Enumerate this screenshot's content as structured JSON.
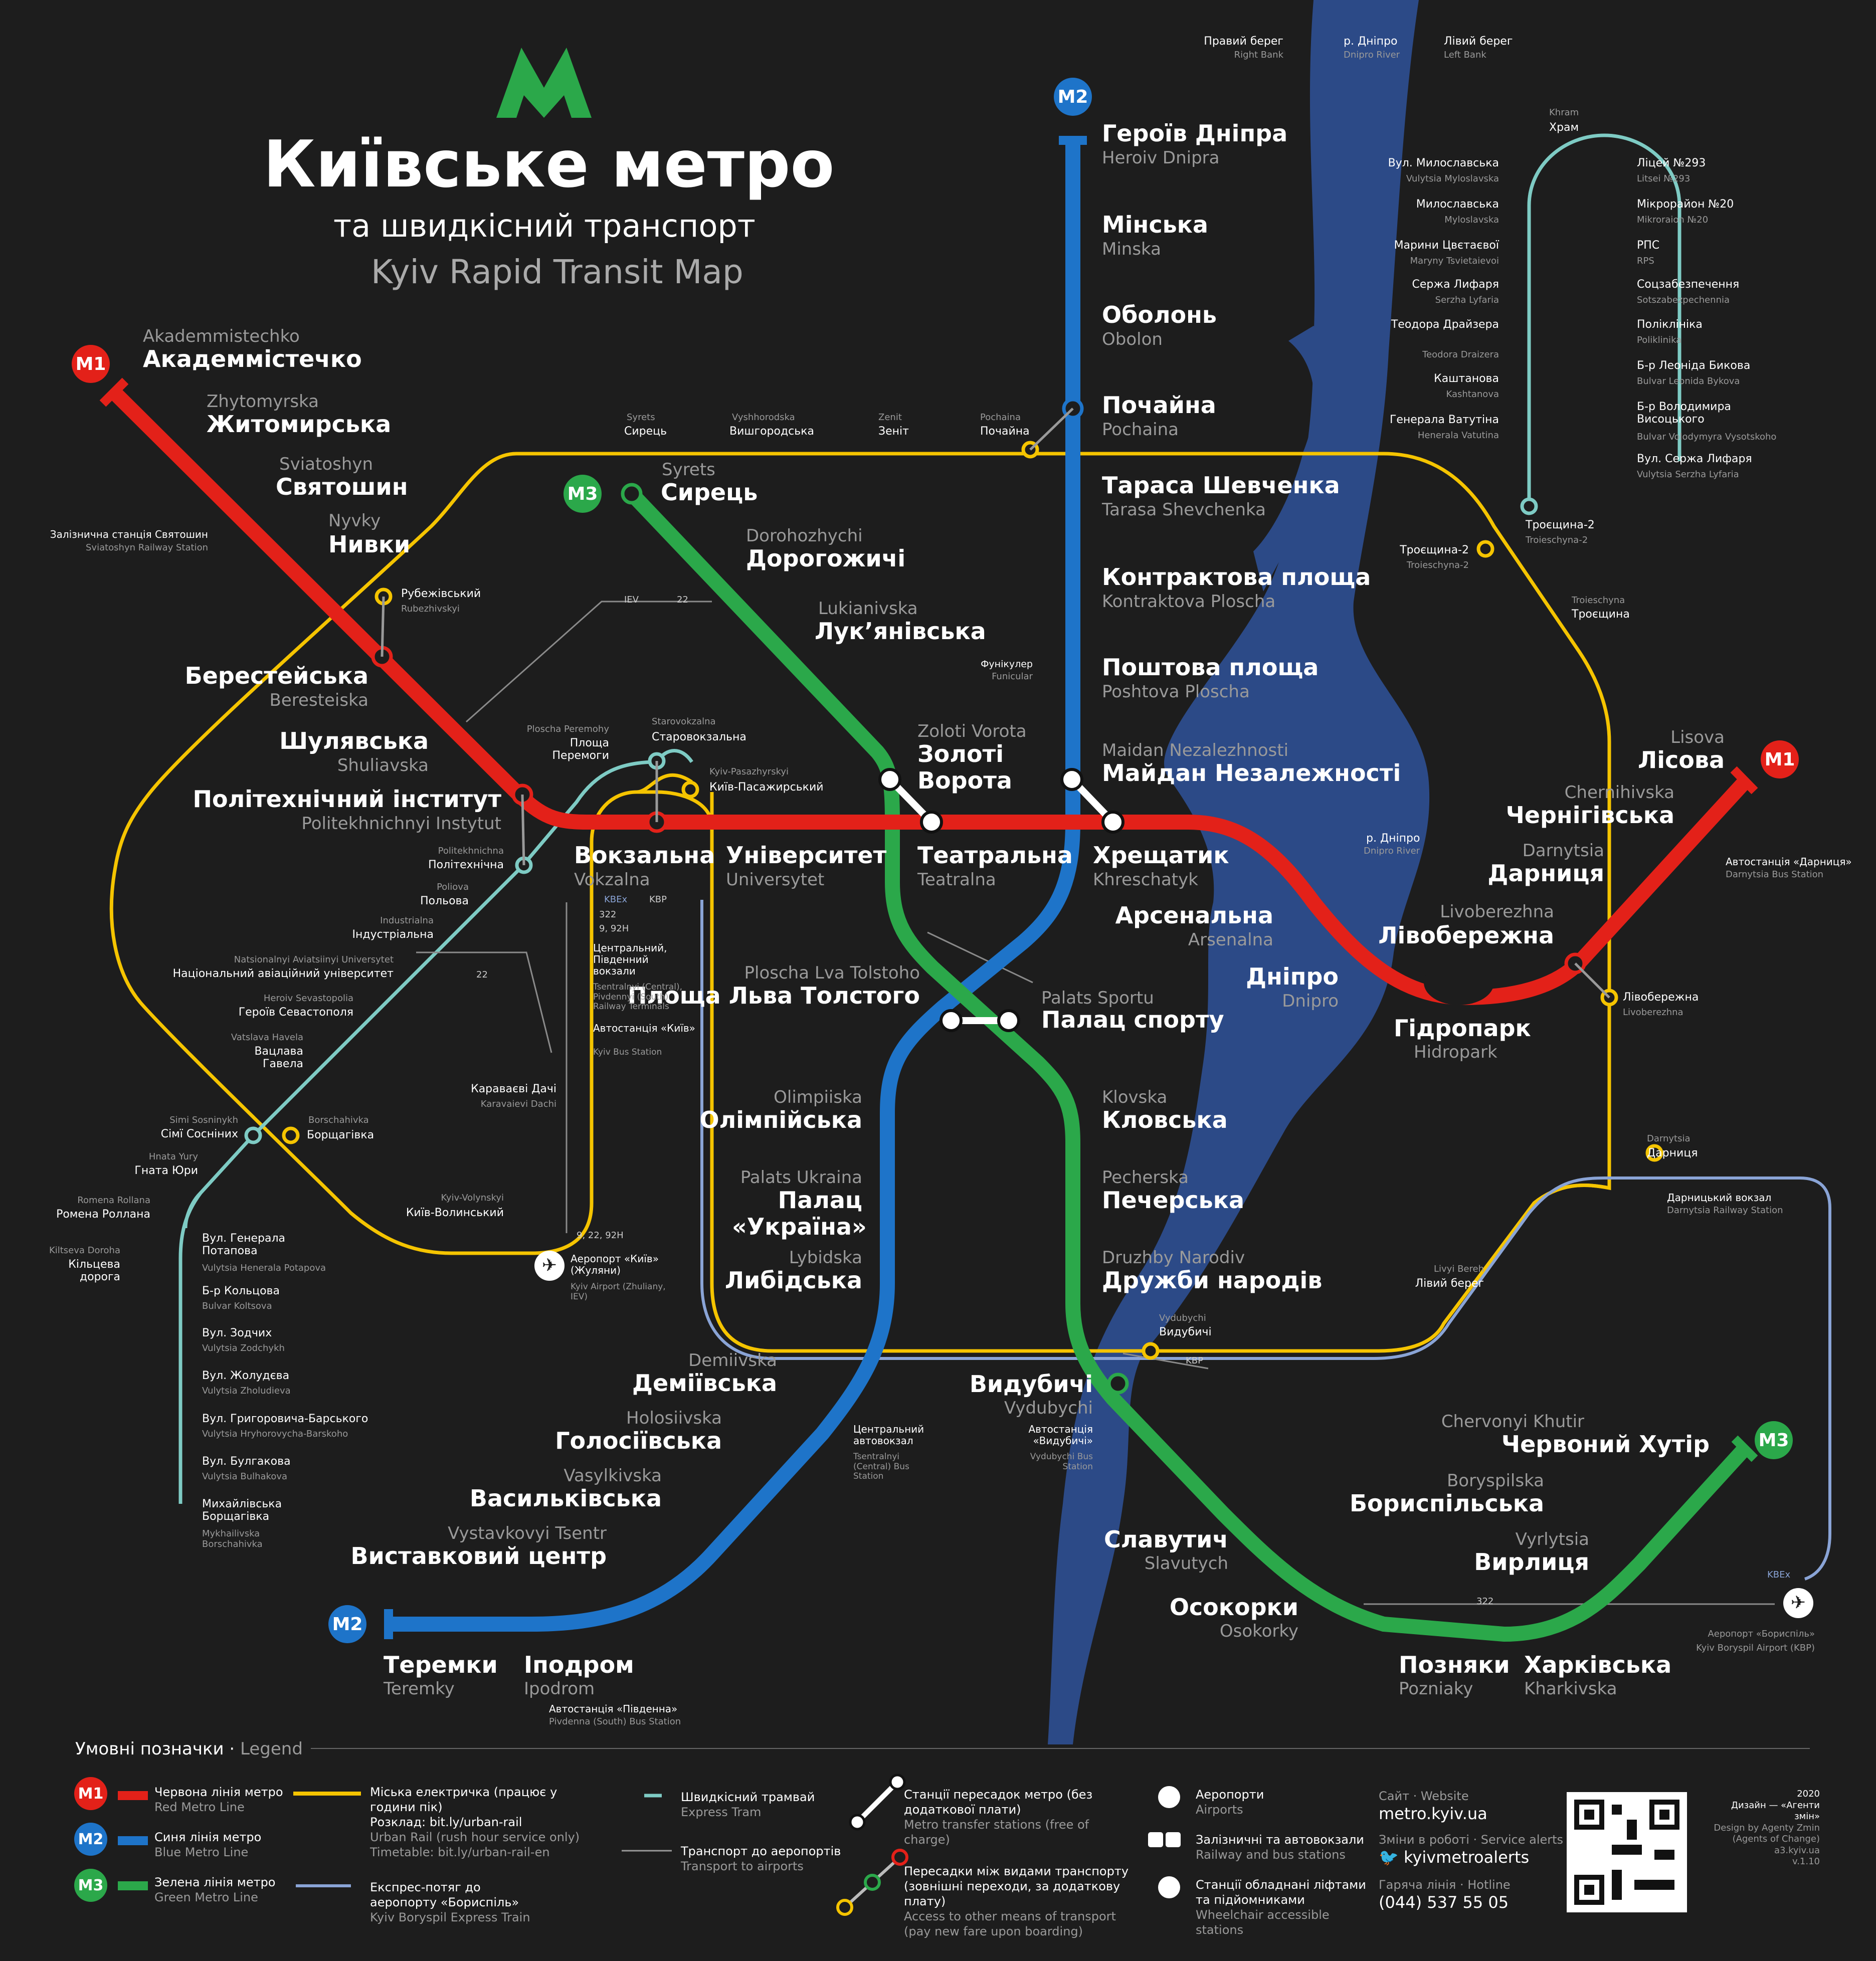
{
  "header": {
    "title": "Київське метро",
    "subtitle_ua": "та швидкісний транспорт",
    "subtitle_en": "Kyiv Rapid Transit Map"
  },
  "river_labels": {
    "right_bank_ua": "Правий берег",
    "right_bank_en": "Right Bank",
    "dnipro_ua": "р. Дніпро",
    "dnipro_en": "Dnipro River",
    "left_bank_ua": "Лівий берег",
    "left_bank_en": "Left Bank",
    "dnipro2_ua": "р. Дніпро",
    "dnipro2_en": "Dnipro River"
  },
  "lines": {
    "m1": {
      "label": "M1",
      "color": "#e32119"
    },
    "m2": {
      "label": "M2",
      "color": "#1e74c9"
    },
    "m3": {
      "label": "M3",
      "color": "#2ba84a"
    },
    "urban_rail": {
      "color": "#f5c400"
    },
    "tram": {
      "color": "#7ecbc4"
    },
    "express": {
      "color": "#8aa4d6"
    },
    "river": {
      "color": "#2c4a87"
    }
  },
  "stations_m1": [
    {
      "ua": "Академмістечко",
      "en": "Akademmistechko"
    },
    {
      "ua": "Житомирська",
      "en": "Zhytomyrska"
    },
    {
      "ua": "Святошин",
      "en": "Sviatoshyn"
    },
    {
      "ua": "Нивки",
      "en": "Nyvky"
    },
    {
      "ua": "Берестейська",
      "en": "Beresteiska"
    },
    {
      "ua": "Шулявська",
      "en": "Shuliavska"
    },
    {
      "ua": "Політехнічний інститут",
      "en": "Politekhnichnyi Instytut"
    },
    {
      "ua": "Вокзальна",
      "en": "Vokzalna"
    },
    {
      "ua": "Університет",
      "en": "Universytet"
    },
    {
      "ua": "Театральна",
      "en": "Teatralna"
    },
    {
      "ua": "Хрещатик",
      "en": "Khreschatyk"
    },
    {
      "ua": "Арсенальна",
      "en": "Arsenalna"
    },
    {
      "ua": "Дніпро",
      "en": "Dnipro"
    },
    {
      "ua": "Гідропарк",
      "en": "Hidropark"
    },
    {
      "ua": "Лівобережна",
      "en": "Livoberezhna"
    },
    {
      "ua": "Дарниця",
      "en": "Darnytsia"
    },
    {
      "ua": "Чернігівська",
      "en": "Chernihivska"
    },
    {
      "ua": "Лісова",
      "en": "Lisova"
    }
  ],
  "stations_m2": [
    {
      "ua": "Героїв Дніпра",
      "en": "Heroiv Dnipra"
    },
    {
      "ua": "Мінська",
      "en": "Minska"
    },
    {
      "ua": "Оболонь",
      "en": "Obolon"
    },
    {
      "ua": "Почайна",
      "en": "Pochaina"
    },
    {
      "ua": "Тараса Шевченка",
      "en": "Tarasa Shevchenka"
    },
    {
      "ua": "Контрактова площа",
      "en": "Kontraktova Ploscha"
    },
    {
      "ua": "Поштова площа",
      "en": "Poshtova Ploscha"
    },
    {
      "ua": "Майдан Незалежності",
      "en": "Maidan Nezalezhnosti"
    },
    {
      "ua": "Площа Льва Толстого",
      "en": "Ploscha Lva Tolstoho"
    },
    {
      "ua": "Олімпійська",
      "en": "Olimpiiska"
    },
    {
      "ua": "Палац «Україна»",
      "en": "Palats Ukraina"
    },
    {
      "ua": "Либідська",
      "en": "Lybidska"
    },
    {
      "ua": "Деміївська",
      "en": "Demiivska"
    },
    {
      "ua": "Голосіївська",
      "en": "Holosiivska"
    },
    {
      "ua": "Васильківська",
      "en": "Vasylkivska"
    },
    {
      "ua": "Виставковий центр",
      "en": "Vystavkovyi Tsentr"
    },
    {
      "ua": "Іподром",
      "en": "Ipodrom"
    },
    {
      "ua": "Теремки",
      "en": "Teremky"
    }
  ],
  "stations_m3": [
    {
      "ua": "Сирець",
      "en": "Syrets"
    },
    {
      "ua": "Дорогожичі",
      "en": "Dorohozhychi"
    },
    {
      "ua": "Лук’янівська",
      "en": "Lukianivska"
    },
    {
      "ua": "Золоті Ворота",
      "en": "Zoloti Vorota"
    },
    {
      "ua": "Палац спорту",
      "en": "Palats Sportu"
    },
    {
      "ua": "Кловська",
      "en": "Klovska"
    },
    {
      "ua": "Печерська",
      "en": "Pecherska"
    },
    {
      "ua": "Дружби народів",
      "en": "Druzhby Narodiv"
    },
    {
      "ua": "Видубичі",
      "en": "Vydubychi"
    },
    {
      "ua": "Славутич",
      "en": "Slavutych"
    },
    {
      "ua": "Осокорки",
      "en": "Osokorky"
    },
    {
      "ua": "Позняки",
      "en": "Pozniaky"
    },
    {
      "ua": "Харківська",
      "en": "Kharkivska"
    },
    {
      "ua": "Вирлиця",
      "en": "Vyrlytsia"
    },
    {
      "ua": "Бориспільська",
      "en": "Boryspilska"
    },
    {
      "ua": "Червоний Хутір",
      "en": "Chervonyi Khutir"
    }
  ],
  "rail_stations": [
    {
      "ua": "Сирець",
      "en": "Syrets"
    },
    {
      "ua": "Вишгородська",
      "en": "Vyshhorodska"
    },
    {
      "ua": "Зеніт",
      "en": "Zenit"
    },
    {
      "ua": "Почайна",
      "en": "Pochaina"
    },
    {
      "ua": "Рубежівський",
      "en": "Rubezhivskyi"
    },
    {
      "ua": "Площа Перемоги",
      "en": "Ploscha Peremohy"
    },
    {
      "ua": "Старовокзальна",
      "en": "Starovokzalna"
    },
    {
      "ua": "Київ-Пасажирський",
      "en": "Kyiv-Pasazhyrskyi"
    },
    {
      "ua": "Караваєві Дачі",
      "en": "Karavaievi Dachi"
    },
    {
      "ua": "Борщагівка",
      "en": "Borschahivka"
    },
    {
      "ua": "Київ-Волинський",
      "en": "Kyiv-Volynskyi"
    },
    {
      "ua": "Троєщина-2",
      "en": "Troieschyna-2"
    },
    {
      "ua": "Троєщина",
      "en": "Troieschyna"
    },
    {
      "ua": "Лівобережна",
      "en": "Livoberezhna"
    },
    {
      "ua": "Дарниця",
      "en": "Darnytsia"
    },
    {
      "ua": "Лівий берег",
      "en": "Livyi Bereh"
    },
    {
      "ua": "Видубичі",
      "en": "Vydubychi"
    }
  ],
  "tram_west": [
    {
      "ua": "Політехнічна",
      "en": "Politekhnichna"
    },
    {
      "ua": "Польова",
      "en": "Poliova"
    },
    {
      "ua": "Індустріальна",
      "en": "Industrialna"
    },
    {
      "ua": "Національний авіаційний університет",
      "en": "Natsionalnyi Aviatsiinyi Universytet"
    },
    {
      "ua": "Героїв Севастополя",
      "en": "Heroiv Sevastopolia"
    },
    {
      "ua": "Вацлава Гавела",
      "en": "Vatslava Havela"
    },
    {
      "ua": "Сімї Сосніних",
      "en": "Simi Sosninykh"
    },
    {
      "ua": "Гната Юри",
      "en": "Hnata Yury"
    },
    {
      "ua": "Ромена Роллана",
      "en": "Romena Rollana"
    },
    {
      "ua": "Кільцева дорога",
      "en": "Kiltseva Doroha"
    },
    {
      "ua": "Вул. Генерала Потапова",
      "en": "Vulytsia Henerala Potapova"
    },
    {
      "ua": "Б-р Кольцова",
      "en": "Bulvar Koltsova"
    },
    {
      "ua": "Вул. Зодчих",
      "en": "Vulytsia Zodchykh"
    },
    {
      "ua": "Вул. Жолудєва",
      "en": "Vulytsia Zholudieva"
    },
    {
      "ua": "Вул. Григоровича-Барського",
      "en": "Vulytsia Hryhorovycha-Barskoho"
    },
    {
      "ua": "Вул. Булгакова",
      "en": "Vulytsia Bulhakova"
    },
    {
      "ua": "Михайлівська Борщагівка",
      "en": "Mykhailivska Borschahivka"
    }
  ],
  "tram_east_left": [
    {
      "ua": "Вул. Милославська",
      "en": "Vulytsia Myloslavska"
    },
    {
      "ua": "Милославська",
      "en": "Myloslavska"
    },
    {
      "ua": "Марини Цвєтаєвої",
      "en": "Maryny Tsvietaievoi"
    },
    {
      "ua": "Сержа Лифаря",
      "en": "Serzha Lyfaria"
    },
    {
      "ua": "Теодора Драйзера",
      "en": "Teodora Draizera"
    },
    {
      "ua": "Каштанова",
      "en": "Kashtanova"
    },
    {
      "ua": "Генерала Ватутіна",
      "en": "Henerala Vatutina"
    }
  ],
  "tram_east_right": [
    {
      "ua": "Ліцей №293",
      "en": "Litsei №293"
    },
    {
      "ua": "Мікрорайон №20",
      "en": "Mikroraion №20"
    },
    {
      "ua": "РПС",
      "en": "RPS"
    },
    {
      "ua": "Соцзабезпечення",
      "en": "Sotszabezpechennia"
    },
    {
      "ua": "Поліклініка",
      "en": "Poliklinika"
    },
    {
      "ua": "Б-р Леоніда Бикова",
      "en": "Bulvar Leonida Bykova"
    },
    {
      "ua": "Б-р Володимира Висоцького",
      "en": "Bulvar Volodymyra Vysotskoho"
    },
    {
      "ua": "Вул. Сержа Лифаря",
      "en": "Vulytsia Serzha Lyfaria"
    }
  ],
  "tram_khram": {
    "ua": "Храм",
    "en": "Khram"
  },
  "tram_troieschyna2": {
    "ua": "Троєщина-2",
    "en": "Troieschyna-2"
  },
  "misc": {
    "sviatoshyn_rail_ua": "Залізнична станція Святошин",
    "sviatoshyn_rail_en": "Sviatoshyn Railway Station",
    "funicular_ua": "Фунікулер",
    "funicular_en": "Funicular",
    "darnytsia_bus_ua": "Автостанція «Дарниця»",
    "darnytsia_bus_en": "Darnytsia Bus Station",
    "darnytsia_rail_ua": "Дарницький вокзал",
    "darnytsia_rail_en": "Darnytsia Railway Station",
    "central_vokzal_ua": "Центральний, Південний вокзали",
    "central_vokzal_en": "Tsentralnyi (Central), Pivdennyi (South) Railway Terminals",
    "kyiv_bus_ua": "Автостанція «Київ»",
    "kyiv_bus_en": "Kyiv Bus Station",
    "airport_kyiv_ua": "Аеропорт «Київ» (Жуляни)",
    "airport_kyiv_en": "Kyiv Airport (Zhuliany, IEV)",
    "central_bus_ua": "Центральний автовокзал",
    "central_bus_en": "Tsentralnyi (Central) Bus Station",
    "vydubychi_bus_ua": "Автостанція «Видубичі»",
    "vydubychi_bus_en": "Vydubychi Bus Station",
    "pivdenna_bus_ua": "Автостанція «Південна»",
    "pivdenna_bus_en": "Pivdenna (South) Bus Station",
    "boryspil_ua": "Аеропорт «Бориспіль»",
    "boryspil_en": "Kyiv Boryspil Airport (KBP)",
    "bus22": "22",
    "bus922": "9, 22, 92H",
    "bus992": "9, 92H",
    "bus322": "322",
    "kbex": "KBEx",
    "kbp": "KBP",
    "iev": "IEV"
  },
  "legend": {
    "title_ua": "Умовні позначки",
    "title_en": "Legend",
    "red_ua": "Червона лінія метро",
    "red_en": "Red Metro Line",
    "blue_ua": "Синя лінія метро",
    "blue_en": "Blue Metro Line",
    "green_ua": "Зелена лінія метро",
    "green_en": "Green Metro Line",
    "rail_ua": "Міська електричка (працює у години пік)",
    "rail_sched": "Розклад: bit.ly/urban-rail",
    "rail_en": "Urban Rail  (rush hour service only)",
    "rail_timetable": "Timetable: bit.ly/urban-rail-en",
    "express_ua": "Експрес-потяг до аеропорту «Бориспіль»",
    "express_en": "Kyiv Boryspil Express Train",
    "tram_ua": "Швидкісний трамвай",
    "tram_en": "Express Tram",
    "airport_tr_ua": "Транспорт до аеропортів",
    "airport_tr_en": "Transport to airports",
    "transfer_ua": "Станції пересадок метро (без додаткової плати)",
    "transfer_en": "Metro transfer stations (free of charge)",
    "other_transfer_ua": "Пересадки між видами транспорту (зовнішні переходи, за додаткову плату)",
    "other_transfer_en": "Access to other means of transport (pay new fare upon boarding)",
    "airports_ua": "Аеропорти",
    "airports_en": "Airports",
    "stations_ua": "Залізничні та автовокзали",
    "stations_en": "Railway and bus stations",
    "access_ua": "Станції обладнані ліфтами та підйомниками",
    "access_en": "Wheelchair accessible stations",
    "site_label": "Сайт · Website",
    "site": "metro.kyiv.ua",
    "alerts_label": "Зміни в роботі · Service alerts",
    "alerts": "kyivmetroalerts",
    "hotline_label": "Гаряча лінія · Hotline",
    "hotline": "(044) 537 55 05",
    "year": "2020",
    "design_ua": "Дизайн — «Агенти змін»",
    "design_en": "Design by Agenty Zmin (Agents of Change)",
    "site2": "a3.kyiv.ua",
    "version": "v.1.10"
  }
}
